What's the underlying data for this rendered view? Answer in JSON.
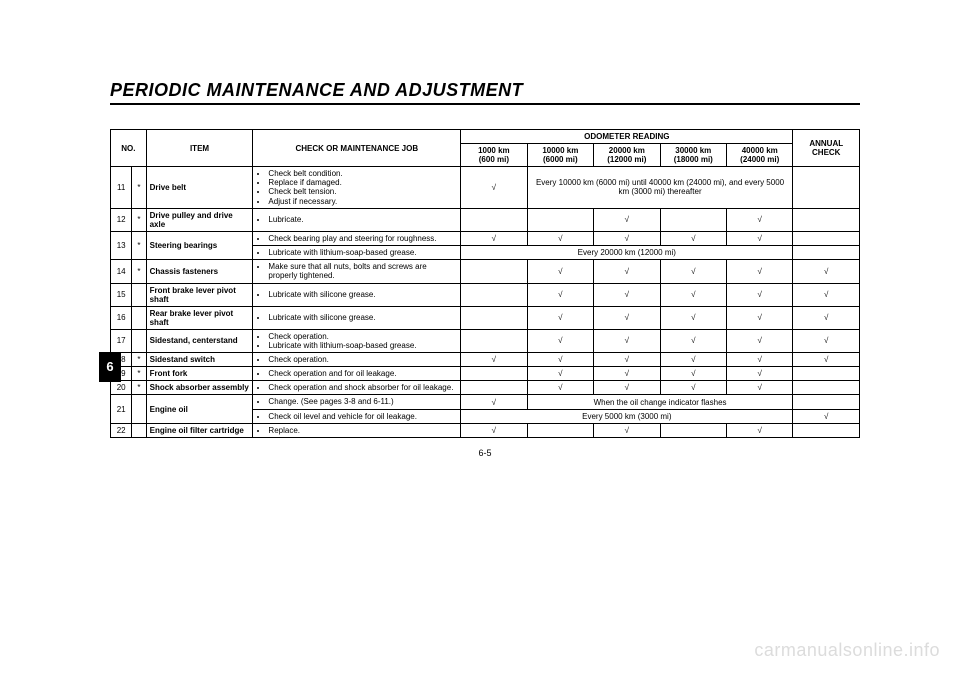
{
  "title": "PERIODIC MAINTENANCE AND ADJUSTMENT",
  "sideTab": "6",
  "pageNumber": "6-5",
  "watermark": "carmanualsonline.info",
  "headers": {
    "no": "NO.",
    "item": "ITEM",
    "job": "CHECK OR MAINTENANCE JOB",
    "odometer": "ODOMETER READING",
    "annual": "ANNUAL CHECK",
    "od": [
      {
        "line1": "1000 km",
        "line2": "(600 mi)"
      },
      {
        "line1": "10000 km",
        "line2": "(6000 mi)"
      },
      {
        "line1": "20000 km",
        "line2": "(12000 mi)"
      },
      {
        "line1": "30000 km",
        "line2": "(18000 mi)"
      },
      {
        "line1": "40000 km",
        "line2": "(24000 mi)"
      }
    ]
  },
  "check": "√",
  "star": "*",
  "rows": {
    "r11": {
      "no": "11",
      "star": "*",
      "item": "Drive belt",
      "jobs": [
        "Check belt condition.",
        "Replace if damaged.",
        "Check belt tension.",
        "Adjust if necessary."
      ],
      "note": "Every 10000 km (6000 mi) until 40000 km (24000 mi), and every 5000 km (3000 mi) thereafter"
    },
    "r12": {
      "no": "12",
      "star": "*",
      "item": "Drive pulley and drive axle",
      "jobs": [
        "Lubricate."
      ]
    },
    "r13": {
      "no": "13",
      "star": "*",
      "item": "Steering bearings",
      "jobA": [
        "Check bearing play and steering for roughness."
      ],
      "jobB": [
        "Lubricate with lithium-soap-based grease."
      ],
      "note": "Every 20000 km (12000 mi)"
    },
    "r14": {
      "no": "14",
      "star": "*",
      "item": "Chassis fasteners",
      "jobs": [
        "Make sure that all nuts, bolts and screws are properly tightened."
      ]
    },
    "r15": {
      "no": "15",
      "item": "Front brake lever pivot shaft",
      "jobs": [
        "Lubricate with silicone grease."
      ]
    },
    "r16": {
      "no": "16",
      "item": "Rear brake lever pivot shaft",
      "jobs": [
        "Lubricate with silicone grease."
      ]
    },
    "r17": {
      "no": "17",
      "item": "Sidestand, centerstand",
      "jobs": [
        "Check operation.",
        "Lubricate with lithium-soap-based grease."
      ]
    },
    "r18": {
      "no": "18",
      "star": "*",
      "item": "Sidestand switch",
      "jobs": [
        "Check operation."
      ]
    },
    "r19": {
      "no": "19",
      "star": "*",
      "item": "Front fork",
      "jobs": [
        "Check operation and for oil leakage."
      ]
    },
    "r20": {
      "no": "20",
      "star": "*",
      "item": "Shock absorber assembly",
      "jobs": [
        "Check operation and shock absorber for oil leakage."
      ]
    },
    "r21": {
      "no": "21",
      "item": "Engine oil",
      "jobA": [
        "Change. (See pages 3-8 and 6-11.)"
      ],
      "noteA": "When the oil change indicator flashes",
      "jobB": [
        "Check oil level and vehicle for oil leakage."
      ],
      "noteB": "Every 5000 km (3000 mi)"
    },
    "r22": {
      "no": "22",
      "item": "Engine oil filter cartridge",
      "jobs": [
        "Replace."
      ]
    }
  }
}
